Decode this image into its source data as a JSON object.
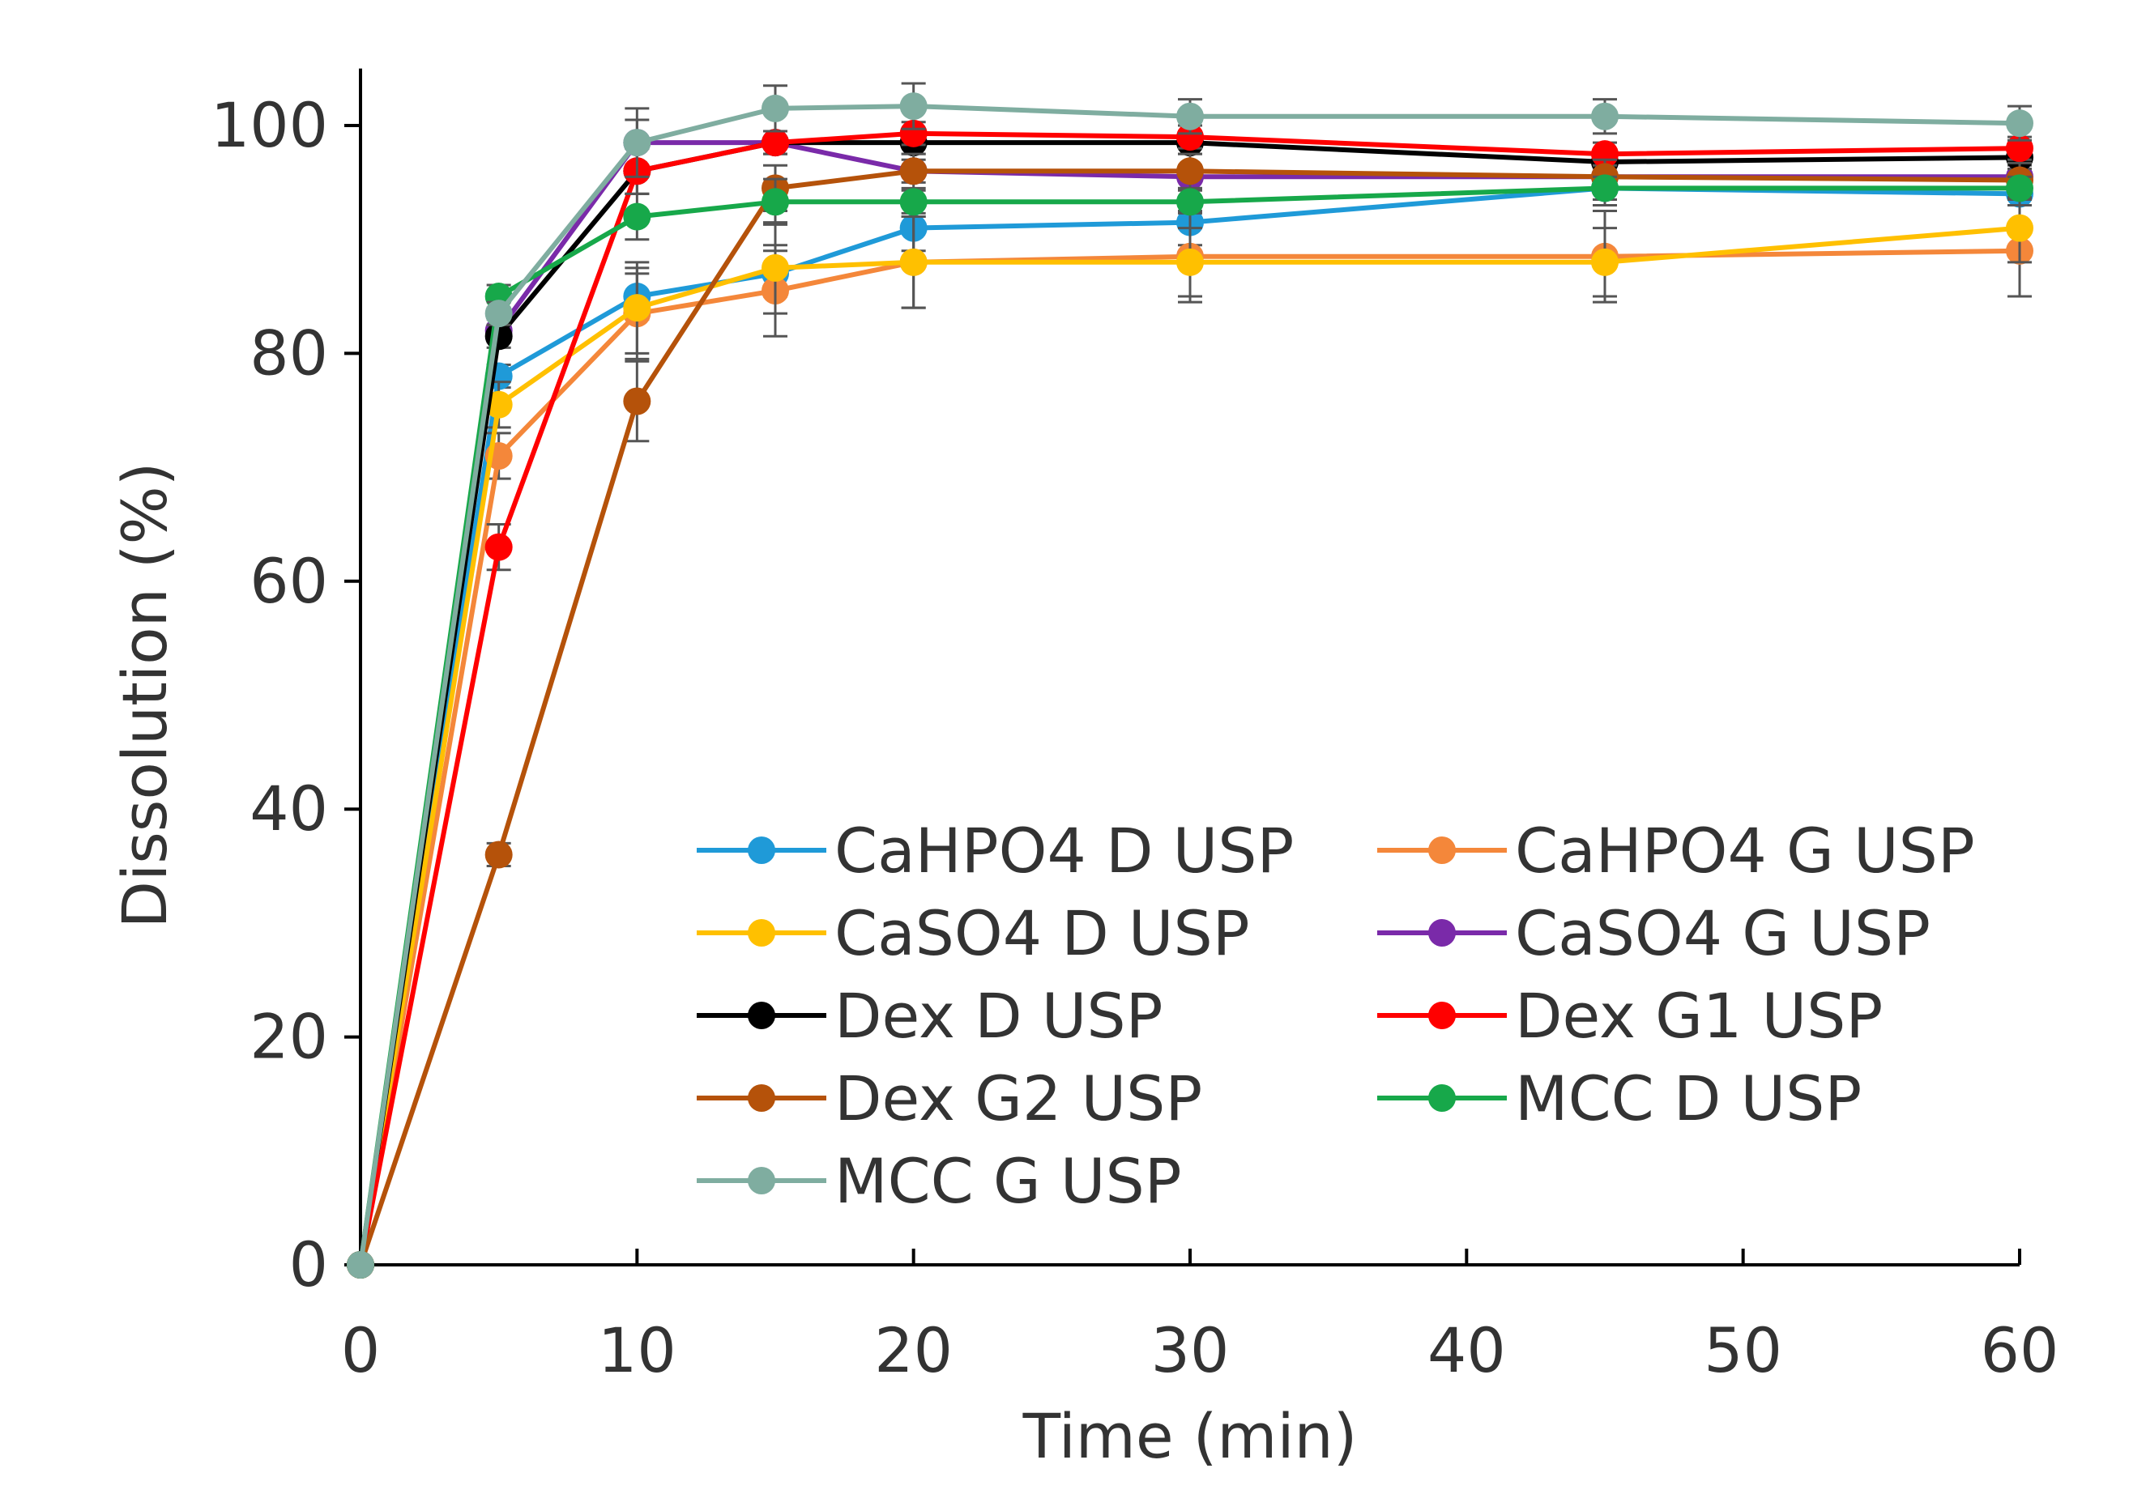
{
  "chart_data": {
    "type": "line",
    "title": "",
    "xlabel": "Time (min)",
    "ylabel": "Dissolution (%)",
    "xlim": [
      0,
      60
    ],
    "ylim": [
      0,
      105
    ],
    "xticks": [
      0,
      10,
      20,
      30,
      40,
      50,
      60
    ],
    "yticks": [
      0,
      20,
      40,
      60,
      80,
      100
    ],
    "grid": false,
    "legend_position": "center-right",
    "x": [
      0,
      5,
      10,
      15,
      20,
      30,
      45,
      60
    ],
    "series": [
      {
        "name": "CaHPO4 D USP",
        "color": "#1f9ad8",
        "values": [
          0,
          78,
          85,
          87,
          91,
          91.5,
          94.5,
          94
        ],
        "errors": [
          0,
          1,
          2,
          2,
          2,
          2,
          1.5,
          1
        ]
      },
      {
        "name": "CaHPO4 G USP",
        "color": "#f4873a",
        "values": [
          0,
          71,
          83.5,
          85.5,
          88,
          88.5,
          88.5,
          89
        ],
        "errors": [
          0,
          2,
          4,
          4,
          4,
          4,
          4,
          4
        ]
      },
      {
        "name": "CaSO4 D USP",
        "color": "#ffc000",
        "values": [
          0,
          75.5,
          84,
          87.5,
          88,
          88,
          88,
          91
        ],
        "errors": [
          0,
          2,
          4,
          4,
          4,
          3,
          3,
          3
        ]
      },
      {
        "name": "CaSO4 G USP",
        "color": "#7a2aa9",
        "values": [
          0,
          82,
          98.5,
          98.5,
          96,
          95.5,
          95.5,
          95.5
        ],
        "errors": [
          0,
          1,
          2,
          1,
          1,
          1,
          1,
          1
        ]
      },
      {
        "name": "Dex D USP",
        "color": "#000000",
        "values": [
          0,
          81.5,
          96,
          98.5,
          98.5,
          98.5,
          96.8,
          97.2
        ],
        "errors": [
          0,
          1,
          2,
          1,
          1,
          1,
          1,
          1
        ]
      },
      {
        "name": "Dex G1 USP",
        "color": "#ff0000",
        "values": [
          0,
          63,
          96,
          98.5,
          99.3,
          99,
          97.5,
          98
        ],
        "errors": [
          0,
          2,
          2,
          1,
          1,
          1,
          1,
          1
        ]
      },
      {
        "name": "Dex G2 USP",
        "color": "#b5520a",
        "values": [
          0,
          36,
          75.8,
          94.5,
          96,
          96,
          95.5,
          95.2
        ],
        "errors": [
          0,
          1,
          3.5,
          2,
          1.5,
          1.5,
          1.5,
          1.5
        ]
      },
      {
        "name": "MCC D USP",
        "color": "#17a84a",
        "values": [
          0,
          85,
          92,
          93.3,
          93.3,
          93.3,
          94.5,
          94.5
        ],
        "errors": [
          0,
          1,
          2,
          2,
          1,
          1,
          1,
          1
        ]
      },
      {
        "name": "MCC G USP",
        "color": "#7fada0",
        "values": [
          0,
          83.5,
          98.5,
          101.5,
          101.7,
          100.8,
          100.8,
          100.2
        ],
        "errors": [
          0,
          1,
          3,
          2,
          2,
          1.5,
          1.5,
          1.5
        ]
      }
    ]
  }
}
